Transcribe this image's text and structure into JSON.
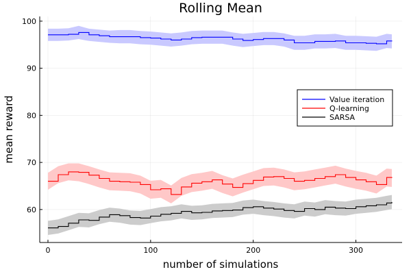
{
  "chart_data": {
    "type": "line",
    "title": "Rolling Mean",
    "xlabel": "number of simulations",
    "ylabel": "mean reward",
    "xlim": [
      -8,
      345
    ],
    "ylim": [
      53,
      101
    ],
    "xticks": [
      0,
      100,
      200,
      300
    ],
    "yticks": [
      60,
      70,
      80,
      90,
      100
    ],
    "grid": true,
    "legend_position": "right",
    "series": [
      {
        "name": "Value iteration",
        "color": "#0000ff",
        "band_color": "#c9c9ff",
        "x": [
          0,
          10,
          20,
          30,
          40,
          50,
          60,
          70,
          80,
          90,
          100,
          110,
          120,
          130,
          140,
          150,
          160,
          170,
          180,
          190,
          200,
          210,
          220,
          230,
          240,
          250,
          260,
          270,
          280,
          290,
          300,
          310,
          320,
          330,
          335
        ],
        "y": [
          97.1,
          97.1,
          97.2,
          97.6,
          97.1,
          96.9,
          96.7,
          96.7,
          96.7,
          96.5,
          96.4,
          96.2,
          96.0,
          96.2,
          96.5,
          96.6,
          96.6,
          96.6,
          96.2,
          95.9,
          96.1,
          96.3,
          96.3,
          96.0,
          95.4,
          95.4,
          95.7,
          95.7,
          95.8,
          95.4,
          95.4,
          95.3,
          95.2,
          95.8,
          95.7
        ],
        "band_low": [
          95.8,
          95.8,
          95.9,
          96.2,
          95.8,
          95.6,
          95.4,
          95.3,
          95.3,
          95.1,
          95.0,
          94.8,
          94.6,
          94.8,
          95.1,
          95.2,
          95.2,
          95.2,
          94.8,
          94.5,
          94.7,
          94.9,
          94.9,
          94.6,
          93.9,
          93.9,
          94.2,
          94.2,
          94.3,
          93.9,
          93.9,
          93.8,
          93.7,
          94.3,
          94.2
        ],
        "band_high": [
          98.4,
          98.4,
          98.5,
          99.0,
          98.4,
          98.2,
          98.0,
          98.1,
          98.1,
          97.9,
          97.8,
          97.6,
          97.4,
          97.6,
          97.9,
          98.0,
          98.0,
          98.0,
          97.6,
          97.3,
          97.5,
          97.7,
          97.7,
          97.4,
          96.9,
          96.9,
          97.2,
          97.2,
          97.3,
          96.9,
          96.9,
          96.8,
          96.7,
          97.3,
          97.2
        ]
      },
      {
        "name": "Q-learning",
        "color": "#ff0000",
        "band_color": "#ffc8c8",
        "x": [
          0,
          10,
          20,
          30,
          40,
          50,
          60,
          70,
          80,
          90,
          100,
          110,
          120,
          130,
          140,
          150,
          160,
          170,
          180,
          190,
          200,
          210,
          220,
          230,
          240,
          250,
          260,
          270,
          280,
          290,
          300,
          310,
          320,
          330,
          335
        ],
        "y": [
          66.0,
          67.4,
          68.0,
          67.9,
          67.3,
          66.6,
          66.0,
          65.9,
          65.8,
          65.3,
          64.2,
          64.4,
          63.2,
          64.8,
          65.6,
          65.9,
          66.3,
          65.4,
          64.7,
          65.5,
          66.2,
          66.9,
          67.0,
          66.6,
          66.0,
          66.2,
          66.6,
          67.0,
          67.4,
          66.8,
          66.3,
          65.9,
          65.3,
          66.8,
          66.7
        ],
        "band_low": [
          64.2,
          65.6,
          66.2,
          66.0,
          65.4,
          64.7,
          64.1,
          64.0,
          63.9,
          63.4,
          62.3,
          62.5,
          61.3,
          62.9,
          63.7,
          64.0,
          64.4,
          63.5,
          62.8,
          63.6,
          64.3,
          65.0,
          65.1,
          64.7,
          64.1,
          64.3,
          64.7,
          65.1,
          65.5,
          64.9,
          64.4,
          64.0,
          63.4,
          64.9,
          64.8
        ],
        "band_high": [
          67.8,
          69.2,
          69.8,
          69.8,
          69.2,
          68.5,
          67.9,
          67.8,
          67.7,
          67.2,
          66.1,
          66.3,
          65.1,
          66.7,
          67.5,
          67.8,
          68.2,
          67.3,
          66.6,
          67.4,
          68.1,
          68.8,
          68.9,
          68.5,
          67.9,
          68.1,
          68.5,
          68.9,
          69.3,
          68.7,
          68.2,
          67.8,
          67.2,
          68.7,
          68.6
        ]
      },
      {
        "name": "SARSA",
        "color": "#000000",
        "band_color": "#cccccc",
        "x": [
          0,
          10,
          20,
          30,
          40,
          50,
          60,
          70,
          80,
          90,
          100,
          110,
          120,
          130,
          140,
          150,
          160,
          170,
          180,
          190,
          200,
          210,
          220,
          230,
          240,
          250,
          260,
          270,
          280,
          290,
          300,
          310,
          320,
          330,
          335
        ],
        "y": [
          56.1,
          56.4,
          57.1,
          57.8,
          57.7,
          58.4,
          58.9,
          58.7,
          58.3,
          58.2,
          58.6,
          59.0,
          59.2,
          59.6,
          59.3,
          59.4,
          59.7,
          59.8,
          59.9,
          60.4,
          60.6,
          60.3,
          60.1,
          59.8,
          59.6,
          60.2,
          60.0,
          60.5,
          60.3,
          60.2,
          60.6,
          60.8,
          61.0,
          61.4,
          61.6
        ],
        "band_low": [
          54.6,
          54.9,
          55.6,
          56.3,
          56.2,
          56.9,
          57.4,
          57.2,
          56.8,
          56.7,
          57.1,
          57.5,
          57.7,
          58.1,
          57.8,
          57.9,
          58.2,
          58.3,
          58.4,
          58.9,
          59.1,
          58.8,
          58.6,
          58.3,
          58.1,
          58.7,
          58.5,
          59.0,
          58.8,
          58.7,
          59.1,
          59.3,
          59.5,
          59.9,
          60.1
        ],
        "band_high": [
          57.6,
          57.9,
          58.6,
          59.3,
          59.2,
          59.9,
          60.4,
          60.2,
          59.8,
          59.7,
          60.1,
          60.5,
          60.7,
          61.1,
          60.8,
          60.9,
          61.2,
          61.3,
          61.4,
          61.9,
          62.1,
          61.8,
          61.6,
          61.3,
          61.1,
          61.7,
          61.5,
          62.0,
          61.8,
          61.7,
          62.1,
          62.3,
          62.5,
          62.9,
          63.1
        ]
      }
    ]
  }
}
